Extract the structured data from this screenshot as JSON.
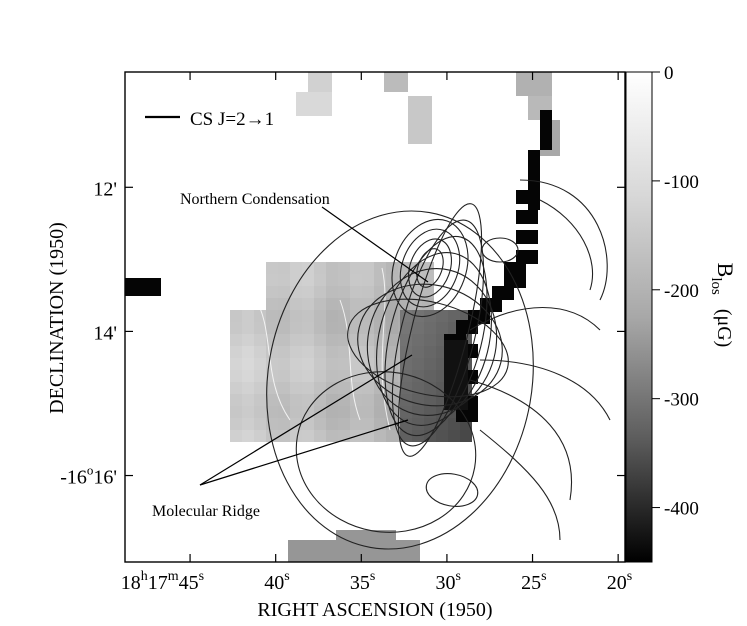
{
  "chart_data": {
    "type": "heatmap",
    "xlabel": "RIGHT ASCENSION (1950)",
    "ylabel": "DECLINATION (1950)",
    "x_ticks": [
      {
        "value": 45,
        "h": "18",
        "m": "17",
        "s": "45"
      },
      {
        "value": 40,
        "s": "40"
      },
      {
        "value": 35,
        "s": "35"
      },
      {
        "value": 30,
        "s": "30"
      },
      {
        "value": 25,
        "s": "25"
      },
      {
        "value": 20,
        "s": "20"
      }
    ],
    "y_ticks": [
      {
        "value": 12,
        "label": "12'"
      },
      {
        "value": 14,
        "label": "14'"
      },
      {
        "value": 16,
        "deg_prefix": "-16",
        "deg_sup": "o",
        "label": "16'"
      }
    ],
    "xlim": [
      48.8,
      19.6
    ],
    "ylim": [
      17.2,
      10.4
    ],
    "colorbar": {
      "title_main": "B",
      "title_sub": "los",
      "unit": "(μG)",
      "range": [
        -450,
        0
      ],
      "ticks": [
        {
          "value": 0,
          "label": "0"
        },
        {
          "value": -100,
          "label": "-100"
        },
        {
          "value": -200,
          "label": "-200"
        },
        {
          "value": -300,
          "label": "-300"
        },
        {
          "value": -400,
          "label": "-400"
        }
      ]
    },
    "legend": {
      "label": "CS J=2→1",
      "position": "top-left"
    },
    "annotations": [
      {
        "text": "Northern Condensation",
        "target": [
          30.7,
          13.1
        ]
      },
      {
        "text": "Molecular Ridge",
        "targets": [
          [
            31.5,
            14.3
          ],
          [
            30.5,
            14.8
          ]
        ]
      }
    ]
  }
}
